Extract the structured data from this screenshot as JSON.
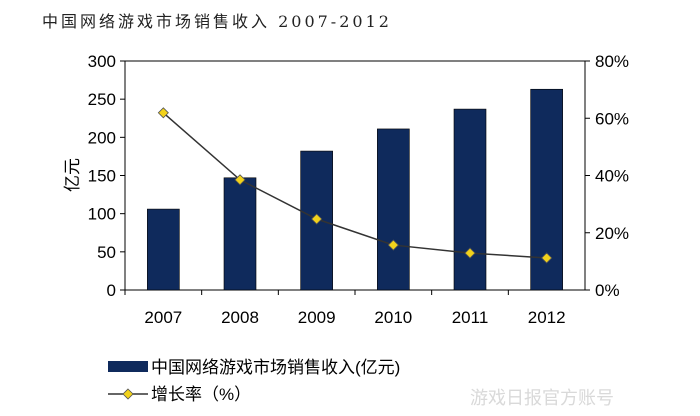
{
  "chart_data": {
    "type": "bar+line",
    "title": "中国网络游戏市场销售收入 2007-2012",
    "categories": [
      "2007",
      "2008",
      "2009",
      "2010",
      "2011",
      "2012"
    ],
    "series": [
      {
        "name": "中国网络游戏市场销售收入(亿元)",
        "type": "bar",
        "axis": "left",
        "color": "#0f2a5c",
        "values": [
          106,
          147,
          182,
          211,
          237,
          263
        ]
      },
      {
        "name": "增长率（%）",
        "type": "line",
        "axis": "right",
        "color": "#333333",
        "marker_color": "#f2d21b",
        "values": [
          61.9,
          38.5,
          24.8,
          15.7,
          12.9,
          11.2
        ]
      }
    ],
    "ylabel": "亿元",
    "ylim": [
      0,
      300
    ],
    "yticks": [
      "0",
      "50",
      "100",
      "150",
      "200",
      "250",
      "300"
    ],
    "y2lim": [
      0,
      80
    ],
    "y2ticks": [
      "0%",
      "20%",
      "40%",
      "60%",
      "80%"
    ],
    "grid": false,
    "legend": "bottom-left"
  },
  "watermark": "游戏日报官方账号"
}
